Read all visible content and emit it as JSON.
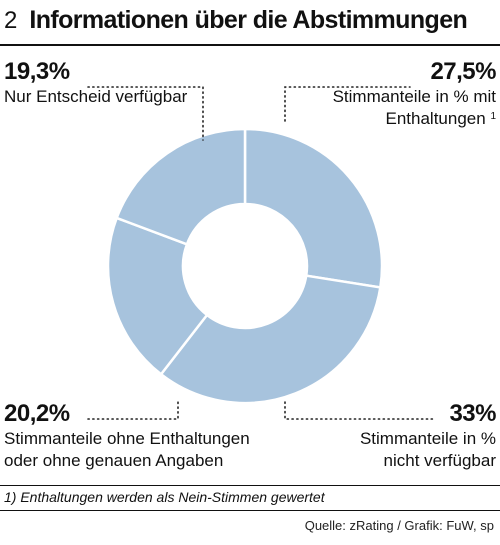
{
  "header": {
    "number": "2",
    "title": "Informationen über die Abstimmungen"
  },
  "chart_data": {
    "type": "pie",
    "donut": true,
    "slices": [
      {
        "value": 27.5,
        "value_label": "27,5%",
        "label_lines": [
          "Stimmanteile in % mit",
          "Enthaltungen"
        ],
        "footnote_ref": "1",
        "color": "#a7c3dd"
      },
      {
        "value": 33,
        "value_label": "33%",
        "label_lines": [
          "Stimmanteile in %",
          "nicht verfügbar"
        ],
        "color": "#a7c3dd"
      },
      {
        "value": 20.2,
        "value_label": "20,2%",
        "label_lines": [
          "Stimmanteile ohne Enthaltungen",
          "oder ohne genauen Angaben"
        ],
        "color": "#a7c3dd"
      },
      {
        "value": 19.3,
        "value_label": "19,3%",
        "label_lines": [
          "Nur Entscheid verfügbar"
        ],
        "color": "#a7c3dd"
      }
    ]
  },
  "footnote": "1) Enthaltungen werden als Nein-Stimmen gewertet",
  "source": "Quelle: zRating / Grafik: FuW, sp"
}
